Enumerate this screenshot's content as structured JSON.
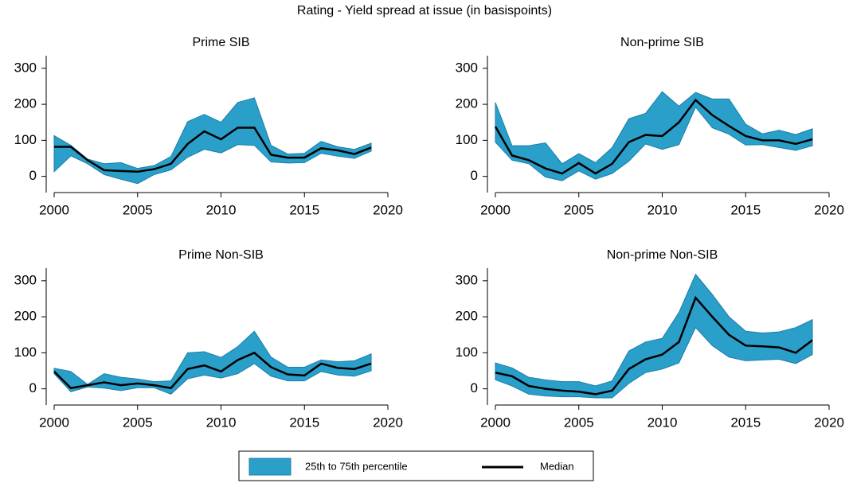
{
  "title": "Rating - Yield spread at issue (in basispoints)",
  "legend": [
    {
      "name": "25th to 75th percentile",
      "color": "#2a9fc9"
    },
    {
      "name": "Median",
      "color": "#000000"
    }
  ],
  "chart_data": [
    {
      "type": "band-line",
      "title": "Prime SIB",
      "x": [
        2000,
        2001,
        2002,
        2003,
        2004,
        2005,
        2006,
        2007,
        2008,
        2009,
        2010,
        2011,
        2012,
        2013,
        2014,
        2015,
        2016,
        2017,
        2018,
        2019
      ],
      "upper": [
        113,
        86,
        48,
        35,
        38,
        22,
        30,
        55,
        152,
        172,
        150,
        205,
        218,
        86,
        62,
        64,
        97,
        82,
        75,
        92
      ],
      "lower": [
        13,
        57,
        35,
        5,
        -8,
        -20,
        5,
        18,
        53,
        75,
        65,
        88,
        86,
        40,
        37,
        38,
        64,
        56,
        50,
        70
      ],
      "median": [
        82,
        82,
        45,
        17,
        15,
        13,
        20,
        35,
        90,
        125,
        103,
        135,
        135,
        60,
        52,
        52,
        78,
        72,
        62,
        80
      ],
      "xlim": [
        2000,
        2020
      ],
      "xticks": [
        2000,
        2005,
        2010,
        2015,
        2020
      ],
      "ylim": [
        -45,
        335
      ],
      "yticks": [
        0,
        100,
        200,
        300
      ]
    },
    {
      "type": "band-line",
      "title": "Non-prime SIB",
      "x": [
        2000,
        2001,
        2002,
        2003,
        2004,
        2005,
        2006,
        2007,
        2008,
        2009,
        2010,
        2011,
        2012,
        2013,
        2014,
        2015,
        2016,
        2017,
        2018,
        2019
      ],
      "upper": [
        205,
        85,
        85,
        93,
        35,
        63,
        38,
        80,
        160,
        175,
        235,
        195,
        233,
        215,
        215,
        145,
        118,
        128,
        116,
        132
      ],
      "lower": [
        95,
        45,
        35,
        -2,
        -12,
        15,
        -8,
        8,
        42,
        90,
        75,
        88,
        192,
        135,
        117,
        87,
        88,
        80,
        72,
        85
      ],
      "median": [
        138,
        58,
        45,
        22,
        8,
        37,
        8,
        35,
        95,
        115,
        112,
        150,
        212,
        170,
        140,
        112,
        100,
        100,
        90,
        103
      ],
      "xlim": [
        2000,
        2020
      ],
      "xticks": [
        2000,
        2005,
        2010,
        2015,
        2020
      ],
      "ylim": [
        -45,
        335
      ],
      "yticks": [
        0,
        100,
        200,
        300
      ]
    },
    {
      "type": "band-line",
      "title": "Prime Non-SIB",
      "x": [
        2000,
        2001,
        2002,
        2003,
        2004,
        2005,
        2006,
        2007,
        2008,
        2009,
        2010,
        2011,
        2012,
        2013,
        2014,
        2015,
        2016,
        2017,
        2018,
        2019
      ],
      "upper": [
        57,
        48,
        12,
        42,
        32,
        27,
        20,
        22,
        100,
        103,
        87,
        117,
        160,
        88,
        60,
        60,
        80,
        75,
        78,
        97
      ],
      "lower": [
        42,
        -8,
        5,
        2,
        -5,
        3,
        3,
        -15,
        28,
        38,
        30,
        42,
        70,
        35,
        22,
        22,
        48,
        38,
        35,
        50
      ],
      "median": [
        48,
        2,
        10,
        18,
        10,
        15,
        10,
        2,
        55,
        65,
        48,
        80,
        100,
        60,
        40,
        37,
        70,
        58,
        55,
        70
      ],
      "xlim": [
        2000,
        2020
      ],
      "xticks": [
        2000,
        2005,
        2010,
        2015,
        2020
      ],
      "ylim": [
        -45,
        335
      ],
      "yticks": [
        0,
        100,
        200,
        300
      ]
    },
    {
      "type": "band-line",
      "title": "Non-prime Non-SIB",
      "x": [
        2000,
        2001,
        2002,
        2003,
        2004,
        2005,
        2006,
        2007,
        2008,
        2009,
        2010,
        2011,
        2012,
        2013,
        2014,
        2015,
        2016,
        2017,
        2018,
        2019
      ],
      "upper": [
        72,
        58,
        32,
        25,
        20,
        20,
        8,
        22,
        105,
        130,
        140,
        212,
        318,
        262,
        200,
        160,
        155,
        158,
        170,
        192
      ],
      "lower": [
        25,
        8,
        -15,
        -20,
        -22,
        -22,
        -25,
        -25,
        15,
        45,
        55,
        72,
        170,
        120,
        88,
        78,
        80,
        82,
        70,
        95
      ],
      "median": [
        45,
        35,
        8,
        0,
        -5,
        -8,
        -15,
        -5,
        55,
        82,
        95,
        130,
        253,
        200,
        150,
        120,
        118,
        115,
        100,
        135
      ],
      "xlim": [
        2000,
        2020
      ],
      "xticks": [
        2000,
        2005,
        2010,
        2015,
        2020
      ],
      "ylim": [
        -45,
        335
      ],
      "yticks": [
        0,
        100,
        200,
        300
      ]
    }
  ]
}
